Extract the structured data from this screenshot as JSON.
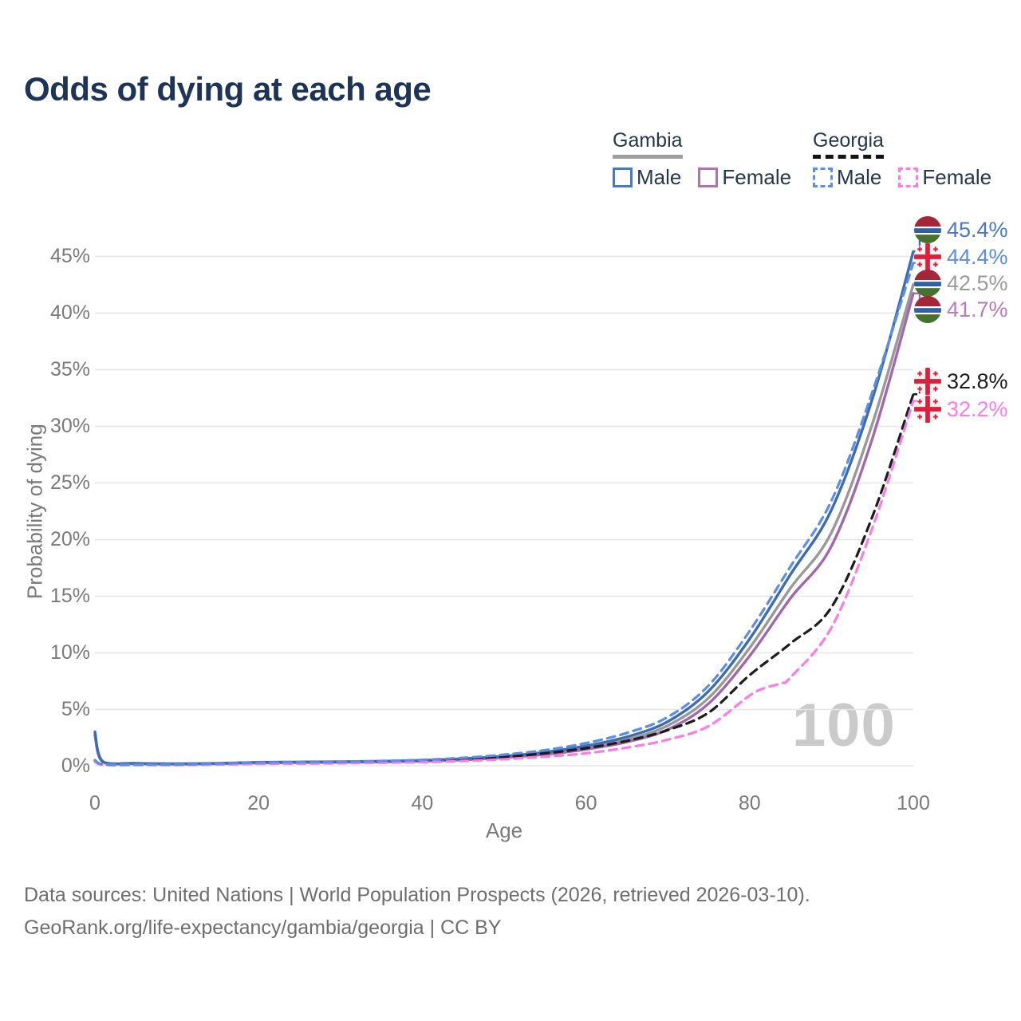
{
  "title": "Odds of dying at each age",
  "watermark": "100",
  "legend": {
    "groups": [
      {
        "label": "Gambia",
        "underline": "solid",
        "underline_color": "#9e9e9e",
        "items": [
          {
            "label": "Male",
            "color": "#4a79bd",
            "dashed": false
          },
          {
            "label": "Female",
            "color": "#b273b5",
            "dashed": false
          }
        ]
      },
      {
        "label": "Georgia",
        "underline": "dashed",
        "underline_color": "#141414",
        "items": [
          {
            "label": "Male",
            "color": "#5b8ee8",
            "dashed": true
          },
          {
            "label": "Female",
            "color": "#fb7ce6",
            "dashed": true
          }
        ]
      }
    ]
  },
  "axes": {
    "x_label": "Age",
    "y_label": "Probability of dying"
  },
  "footer": {
    "line1": "Data sources: United Nations | World Population Prospects (2026, retrieved 2026-03-10).",
    "line2": "GeoRank.org/life-expectancy/gambia/georgia | CC BY"
  },
  "chart_data": {
    "type": "line",
    "title": "Odds of dying at each age",
    "xlabel": "Age",
    "ylabel": "Probability of dying",
    "x_range": [
      0,
      100
    ],
    "y_range_pct": [
      0,
      47
    ],
    "xtick_labels": [
      "0",
      "20",
      "40",
      "60",
      "80",
      "100"
    ],
    "xtick_values": [
      0,
      20,
      40,
      60,
      80,
      100
    ],
    "ytick_labels": [
      "0%",
      "5%",
      "10%",
      "15%",
      "20%",
      "25%",
      "30%",
      "35%",
      "40%",
      "45%"
    ],
    "ytick_values": [
      0,
      5,
      10,
      15,
      20,
      25,
      30,
      35,
      40,
      45
    ],
    "grid": "horizontal",
    "legend_position": "top-right",
    "hover_age_indicator": "100",
    "series": [
      {
        "key": "gambia-male",
        "name": "Gambia Male",
        "country": "Gambia",
        "sex": "Male",
        "color": "#3e6cb4",
        "label_color": "#4878c8",
        "dashed": false,
        "flag": "gambia",
        "end_label": "45.4%",
        "end_value_pct": 45.4,
        "points": [
          [
            0,
            3.0
          ],
          [
            1,
            0.35
          ],
          [
            5,
            0.22
          ],
          [
            10,
            0.18
          ],
          [
            15,
            0.22
          ],
          [
            20,
            0.3
          ],
          [
            25,
            0.33
          ],
          [
            30,
            0.36
          ],
          [
            35,
            0.4
          ],
          [
            40,
            0.48
          ],
          [
            45,
            0.62
          ],
          [
            50,
            0.85
          ],
          [
            55,
            1.2
          ],
          [
            60,
            1.75
          ],
          [
            65,
            2.55
          ],
          [
            70,
            3.9
          ],
          [
            75,
            6.6
          ],
          [
            80,
            11.2
          ],
          [
            85,
            16.9
          ],
          [
            90,
            22.6
          ],
          [
            95,
            32.4
          ],
          [
            100,
            45.4
          ]
        ]
      },
      {
        "key": "georgia-male",
        "name": "Georgia Male",
        "country": "Georgia",
        "sex": "Male",
        "color": "#5b8ee8",
        "label_color": "#5b8ee8",
        "dashed": true,
        "flag": "georgia",
        "end_label": "44.4%",
        "end_value_pct": 44.4,
        "points": [
          [
            0,
            0.5
          ],
          [
            1,
            0.12
          ],
          [
            5,
            0.1
          ],
          [
            10,
            0.1
          ],
          [
            15,
            0.18
          ],
          [
            20,
            0.28
          ],
          [
            25,
            0.31
          ],
          [
            30,
            0.34
          ],
          [
            35,
            0.42
          ],
          [
            40,
            0.52
          ],
          [
            45,
            0.7
          ],
          [
            50,
            0.98
          ],
          [
            55,
            1.38
          ],
          [
            60,
            2.0
          ],
          [
            65,
            2.9
          ],
          [
            70,
            4.3
          ],
          [
            75,
            7.1
          ],
          [
            80,
            11.9
          ],
          [
            85,
            17.6
          ],
          [
            90,
            23.4
          ],
          [
            95,
            33.0
          ],
          [
            100,
            44.4
          ]
        ]
      },
      {
        "key": "gambia-total",
        "name": "Gambia",
        "country": "Gambia",
        "sex": "Both",
        "color": "#999999",
        "label_color": "#9a9a9a",
        "dashed": false,
        "flag": "gambia",
        "end_label": "42.5%",
        "end_value_pct": 42.5,
        "points": [
          [
            0,
            2.85
          ],
          [
            1,
            0.33
          ],
          [
            5,
            0.2
          ],
          [
            10,
            0.16
          ],
          [
            15,
            0.2
          ],
          [
            20,
            0.28
          ],
          [
            25,
            0.3
          ],
          [
            30,
            0.33
          ],
          [
            35,
            0.37
          ],
          [
            40,
            0.44
          ],
          [
            45,
            0.57
          ],
          [
            50,
            0.78
          ],
          [
            55,
            1.1
          ],
          [
            60,
            1.6
          ],
          [
            65,
            2.3
          ],
          [
            70,
            3.55
          ],
          [
            75,
            6.0
          ],
          [
            80,
            10.4
          ],
          [
            85,
            15.7
          ],
          [
            90,
            20.6
          ],
          [
            95,
            30.2
          ],
          [
            100,
            42.5
          ]
        ]
      },
      {
        "key": "gambia-female",
        "name": "Gambia Female",
        "country": "Gambia",
        "sex": "Female",
        "color": "#a368aa",
        "label_color": "#b77abf",
        "dashed": false,
        "flag": "gambia",
        "end_label": "41.7%",
        "end_value_pct": 41.7,
        "points": [
          [
            0,
            2.7
          ],
          [
            1,
            0.3
          ],
          [
            5,
            0.18
          ],
          [
            10,
            0.14
          ],
          [
            15,
            0.18
          ],
          [
            20,
            0.25
          ],
          [
            25,
            0.28
          ],
          [
            30,
            0.3
          ],
          [
            35,
            0.34
          ],
          [
            40,
            0.4
          ],
          [
            45,
            0.52
          ],
          [
            50,
            0.72
          ],
          [
            55,
            1.0
          ],
          [
            60,
            1.45
          ],
          [
            65,
            2.1
          ],
          [
            70,
            3.2
          ],
          [
            75,
            5.5
          ],
          [
            80,
            9.7
          ],
          [
            85,
            14.8
          ],
          [
            90,
            19.4
          ],
          [
            95,
            28.9
          ],
          [
            100,
            41.7
          ]
        ]
      },
      {
        "key": "georgia-total",
        "name": "Georgia",
        "country": "Georgia",
        "sex": "Both",
        "color": "#1c1c1c",
        "label_color": "#1c1c1c",
        "dashed": true,
        "flag": "georgia",
        "end_label": "32.8%",
        "end_value_pct": 32.8,
        "points": [
          [
            0,
            0.45
          ],
          [
            1,
            0.1
          ],
          [
            5,
            0.08
          ],
          [
            10,
            0.08
          ],
          [
            15,
            0.14
          ],
          [
            20,
            0.22
          ],
          [
            25,
            0.25
          ],
          [
            30,
            0.28
          ],
          [
            35,
            0.34
          ],
          [
            40,
            0.42
          ],
          [
            45,
            0.56
          ],
          [
            50,
            0.78
          ],
          [
            55,
            1.1
          ],
          [
            60,
            1.55
          ],
          [
            65,
            2.2
          ],
          [
            70,
            3.15
          ],
          [
            75,
            4.7
          ],
          [
            80,
            8.0
          ],
          [
            85,
            10.8
          ],
          [
            90,
            14.0
          ],
          [
            95,
            22.0
          ],
          [
            100,
            32.8
          ]
        ]
      },
      {
        "key": "georgia-female",
        "name": "Georgia Female",
        "country": "Georgia",
        "sex": "Female",
        "color": "#fb7ce6",
        "label_color": "#fb7ce6",
        "dashed": true,
        "flag": "georgia",
        "end_label": "32.2%",
        "end_value_pct": 32.2,
        "points": [
          [
            0,
            0.35
          ],
          [
            1,
            0.07
          ],
          [
            5,
            0.06
          ],
          [
            10,
            0.06
          ],
          [
            15,
            0.1
          ],
          [
            20,
            0.16
          ],
          [
            25,
            0.18
          ],
          [
            30,
            0.21
          ],
          [
            35,
            0.26
          ],
          [
            40,
            0.31
          ],
          [
            45,
            0.42
          ],
          [
            50,
            0.58
          ],
          [
            55,
            0.8
          ],
          [
            60,
            1.1
          ],
          [
            65,
            1.6
          ],
          [
            70,
            2.3
          ],
          [
            75,
            3.5
          ],
          [
            80,
            6.2
          ],
          [
            82,
            6.9
          ],
          [
            84,
            7.3
          ],
          [
            85,
            7.8
          ],
          [
            90,
            12.2
          ],
          [
            95,
            21.0
          ],
          [
            100,
            32.2
          ]
        ]
      }
    ]
  }
}
